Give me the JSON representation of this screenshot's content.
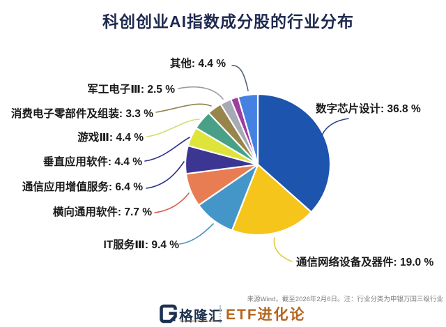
{
  "title": "科创创业AI指数成分股的行业分布",
  "chart_data": {
    "type": "pie",
    "title": "科创创业AI指数成分股的行业分布",
    "unit": "%",
    "start_angle": "12-o-clock",
    "direction": "clockwise",
    "legend": "none (leader-line labels)",
    "slices": [
      {
        "label": "数字芯片设计",
        "value": 36.8,
        "color": "#1c54ae",
        "display": "数字芯片设计: 36.8 %",
        "side": "right"
      },
      {
        "label": "通信网络设备及器件",
        "value": 19.0,
        "color": "#f6c51c",
        "display": "通信网络设备及器件: 19.0 %",
        "side": "right"
      },
      {
        "label": "IT服务Ⅲ",
        "value": 9.4,
        "color": "#4596c8",
        "display": "IT服务Ⅲ: 9.4 %",
        "side": "left"
      },
      {
        "label": "横向通用软件",
        "value": 7.7,
        "color": "#e87c52",
        "display": "横向通用软件: 7.7 %",
        "side": "left"
      },
      {
        "label": "通信应用增值服务",
        "value": 6.4,
        "color": "#3c3693",
        "display": "通信应用增值服务: 6.4 %",
        "side": "left"
      },
      {
        "label": "垂直应用软件",
        "value": 4.4,
        "color": "#dfe43b",
        "display": "垂直应用软件: 4.4 %",
        "side": "left"
      },
      {
        "label": "游戏Ⅲ",
        "value": 4.4,
        "color": "#48a187",
        "display": "游戏Ⅲ: 4.4 %",
        "side": "left"
      },
      {
        "label": "消费电子零部件及组装",
        "value": 3.3,
        "color": "#97854c",
        "display": "消费电子零部件及组装: 3.3 %",
        "side": "left"
      },
      {
        "label": "军工电子Ⅲ",
        "value": 2.5,
        "color": "#a7a9b4",
        "display": "军工电子Ⅲ: 2.5 %",
        "side": "left"
      },
      {
        "label": "",
        "value": 1.7,
        "color": "#9c3f9f",
        "display": "",
        "side": "none"
      },
      {
        "label": "其他",
        "value": 4.4,
        "color": "#4581e0",
        "display": "其他: 4.4 %",
        "side": "left"
      }
    ]
  },
  "footer": {
    "source_note": "来源Wind，截至2026年2月6日。注：行业分类为申银万国三级行业",
    "brand_name": "格隆汇",
    "brand_url": "www.gelonghui.com",
    "series_name": "ETF进化论"
  },
  "colors": {
    "title_text": "#1f2950",
    "label_text": "#191919",
    "background": "#ffffff",
    "brand_navy": "#1c3150",
    "series_orange": "#b5651d"
  }
}
